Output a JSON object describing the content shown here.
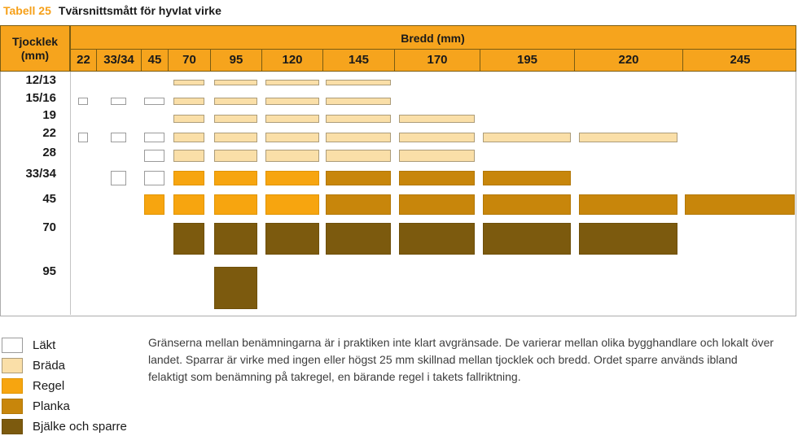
{
  "title": {
    "tag": "Tabell 25",
    "text": "Tvärsnittsmått för hyvlat virke"
  },
  "table_headers": {
    "row_header_line1": "Tjocklek",
    "row_header_line2": "(mm)",
    "col_header": "Bredd (mm)"
  },
  "chart_data": {
    "type": "table",
    "title": "Tvärsnittsmått för hyvlat virke",
    "x_header": "Bredd (mm)",
    "y_header": "Tjocklek (mm)",
    "columns": [
      {
        "label": "22",
        "mm": 22
      },
      {
        "label": "33/34",
        "mm": 33.5
      },
      {
        "label": "45",
        "mm": 45
      },
      {
        "label": "70",
        "mm": 70
      },
      {
        "label": "95",
        "mm": 95
      },
      {
        "label": "120",
        "mm": 120
      },
      {
        "label": "145",
        "mm": 145
      },
      {
        "label": "170",
        "mm": 170
      },
      {
        "label": "195",
        "mm": 195
      },
      {
        "label": "220",
        "mm": 220
      },
      {
        "label": "245",
        "mm": 245
      }
    ],
    "rows": [
      {
        "label": "12/13",
        "mm": 12.5,
        "cells": {
          "70": "brada",
          "95": "brada",
          "120": "brada",
          "145": "brada"
        }
      },
      {
        "label": "15/16",
        "mm": 15.5,
        "cells": {
          "22": "lakt",
          "33/34": "lakt",
          "45": "lakt",
          "70": "brada",
          "95": "brada",
          "120": "brada",
          "145": "brada"
        }
      },
      {
        "label": "19",
        "mm": 19,
        "cells": {
          "70": "brada",
          "95": "brada",
          "120": "brada",
          "145": "brada",
          "170": "brada"
        }
      },
      {
        "label": "22",
        "mm": 22,
        "cells": {
          "22": "lakt",
          "33/34": "lakt",
          "45": "lakt",
          "70": "brada",
          "95": "brada",
          "120": "brada",
          "145": "brada",
          "170": "brada",
          "195": "brada",
          "220": "brada"
        }
      },
      {
        "label": "28",
        "mm": 28,
        "cells": {
          "45": "lakt",
          "70": "brada",
          "95": "brada",
          "120": "brada",
          "145": "brada",
          "170": "brada"
        }
      },
      {
        "label": "33/34",
        "mm": 33.5,
        "cells": {
          "33/34": "lakt",
          "45": "lakt",
          "70": "regel",
          "95": "regel",
          "120": "regel",
          "145": "planka",
          "170": "planka",
          "195": "planka"
        }
      },
      {
        "label": "45",
        "mm": 45,
        "cells": {
          "45": "regel",
          "70": "regel",
          "95": "regel",
          "120": "regel",
          "145": "planka",
          "170": "planka",
          "195": "planka",
          "220": "planka",
          "245": "planka"
        }
      },
      {
        "label": "70",
        "mm": 70,
        "cells": {
          "70": "bjalke",
          "95": "bjalke",
          "120": "bjalke",
          "145": "bjalke",
          "170": "bjalke",
          "195": "bjalke",
          "220": "bjalke"
        }
      },
      {
        "label": "95",
        "mm": 95,
        "cells": {
          "95": "bjalke"
        }
      }
    ],
    "categories": {
      "lakt": "Läkt",
      "brada": "Bräda",
      "regel": "Regel",
      "planka": "Planka",
      "bjalke": "Bjälke och sparre"
    }
  },
  "legend": [
    {
      "key": "lakt",
      "label": "Läkt"
    },
    {
      "key": "brada",
      "label": "Bräda"
    },
    {
      "key": "regel",
      "label": "Regel"
    },
    {
      "key": "planka",
      "label": "Planka"
    },
    {
      "key": "bjalke",
      "label": "Bjälke och sparre"
    }
  ],
  "note": "Gränserna mellan benämningarna är i praktiken inte klart avgränsade. De varierar mellan olika bygghandlare och lokalt över landet. Sparrar är virke med ingen eller högst 25 mm skillnad mellan tjocklek och bredd. Ordet sparre används ibland felaktigt som benämning på takregel, en bärande regel i takets fallriktning.",
  "colors": {
    "header_orange": "#f6a41d",
    "grid_dark": "#7a5c12",
    "title_accent": "#f6a019",
    "lakt_fill": "#ffffff",
    "lakt_border": "#9b9b9b",
    "brada_fill": "#fadfa8",
    "brada_border": "#ac9c79",
    "regel_fill": "#f7a50f",
    "regel_border": "#e09400",
    "planka_fill": "#c8860b",
    "planka_border": "#b27705",
    "bjalke_fill": "#7c5a0e",
    "bjalke_border": "#6e4f0a"
  }
}
